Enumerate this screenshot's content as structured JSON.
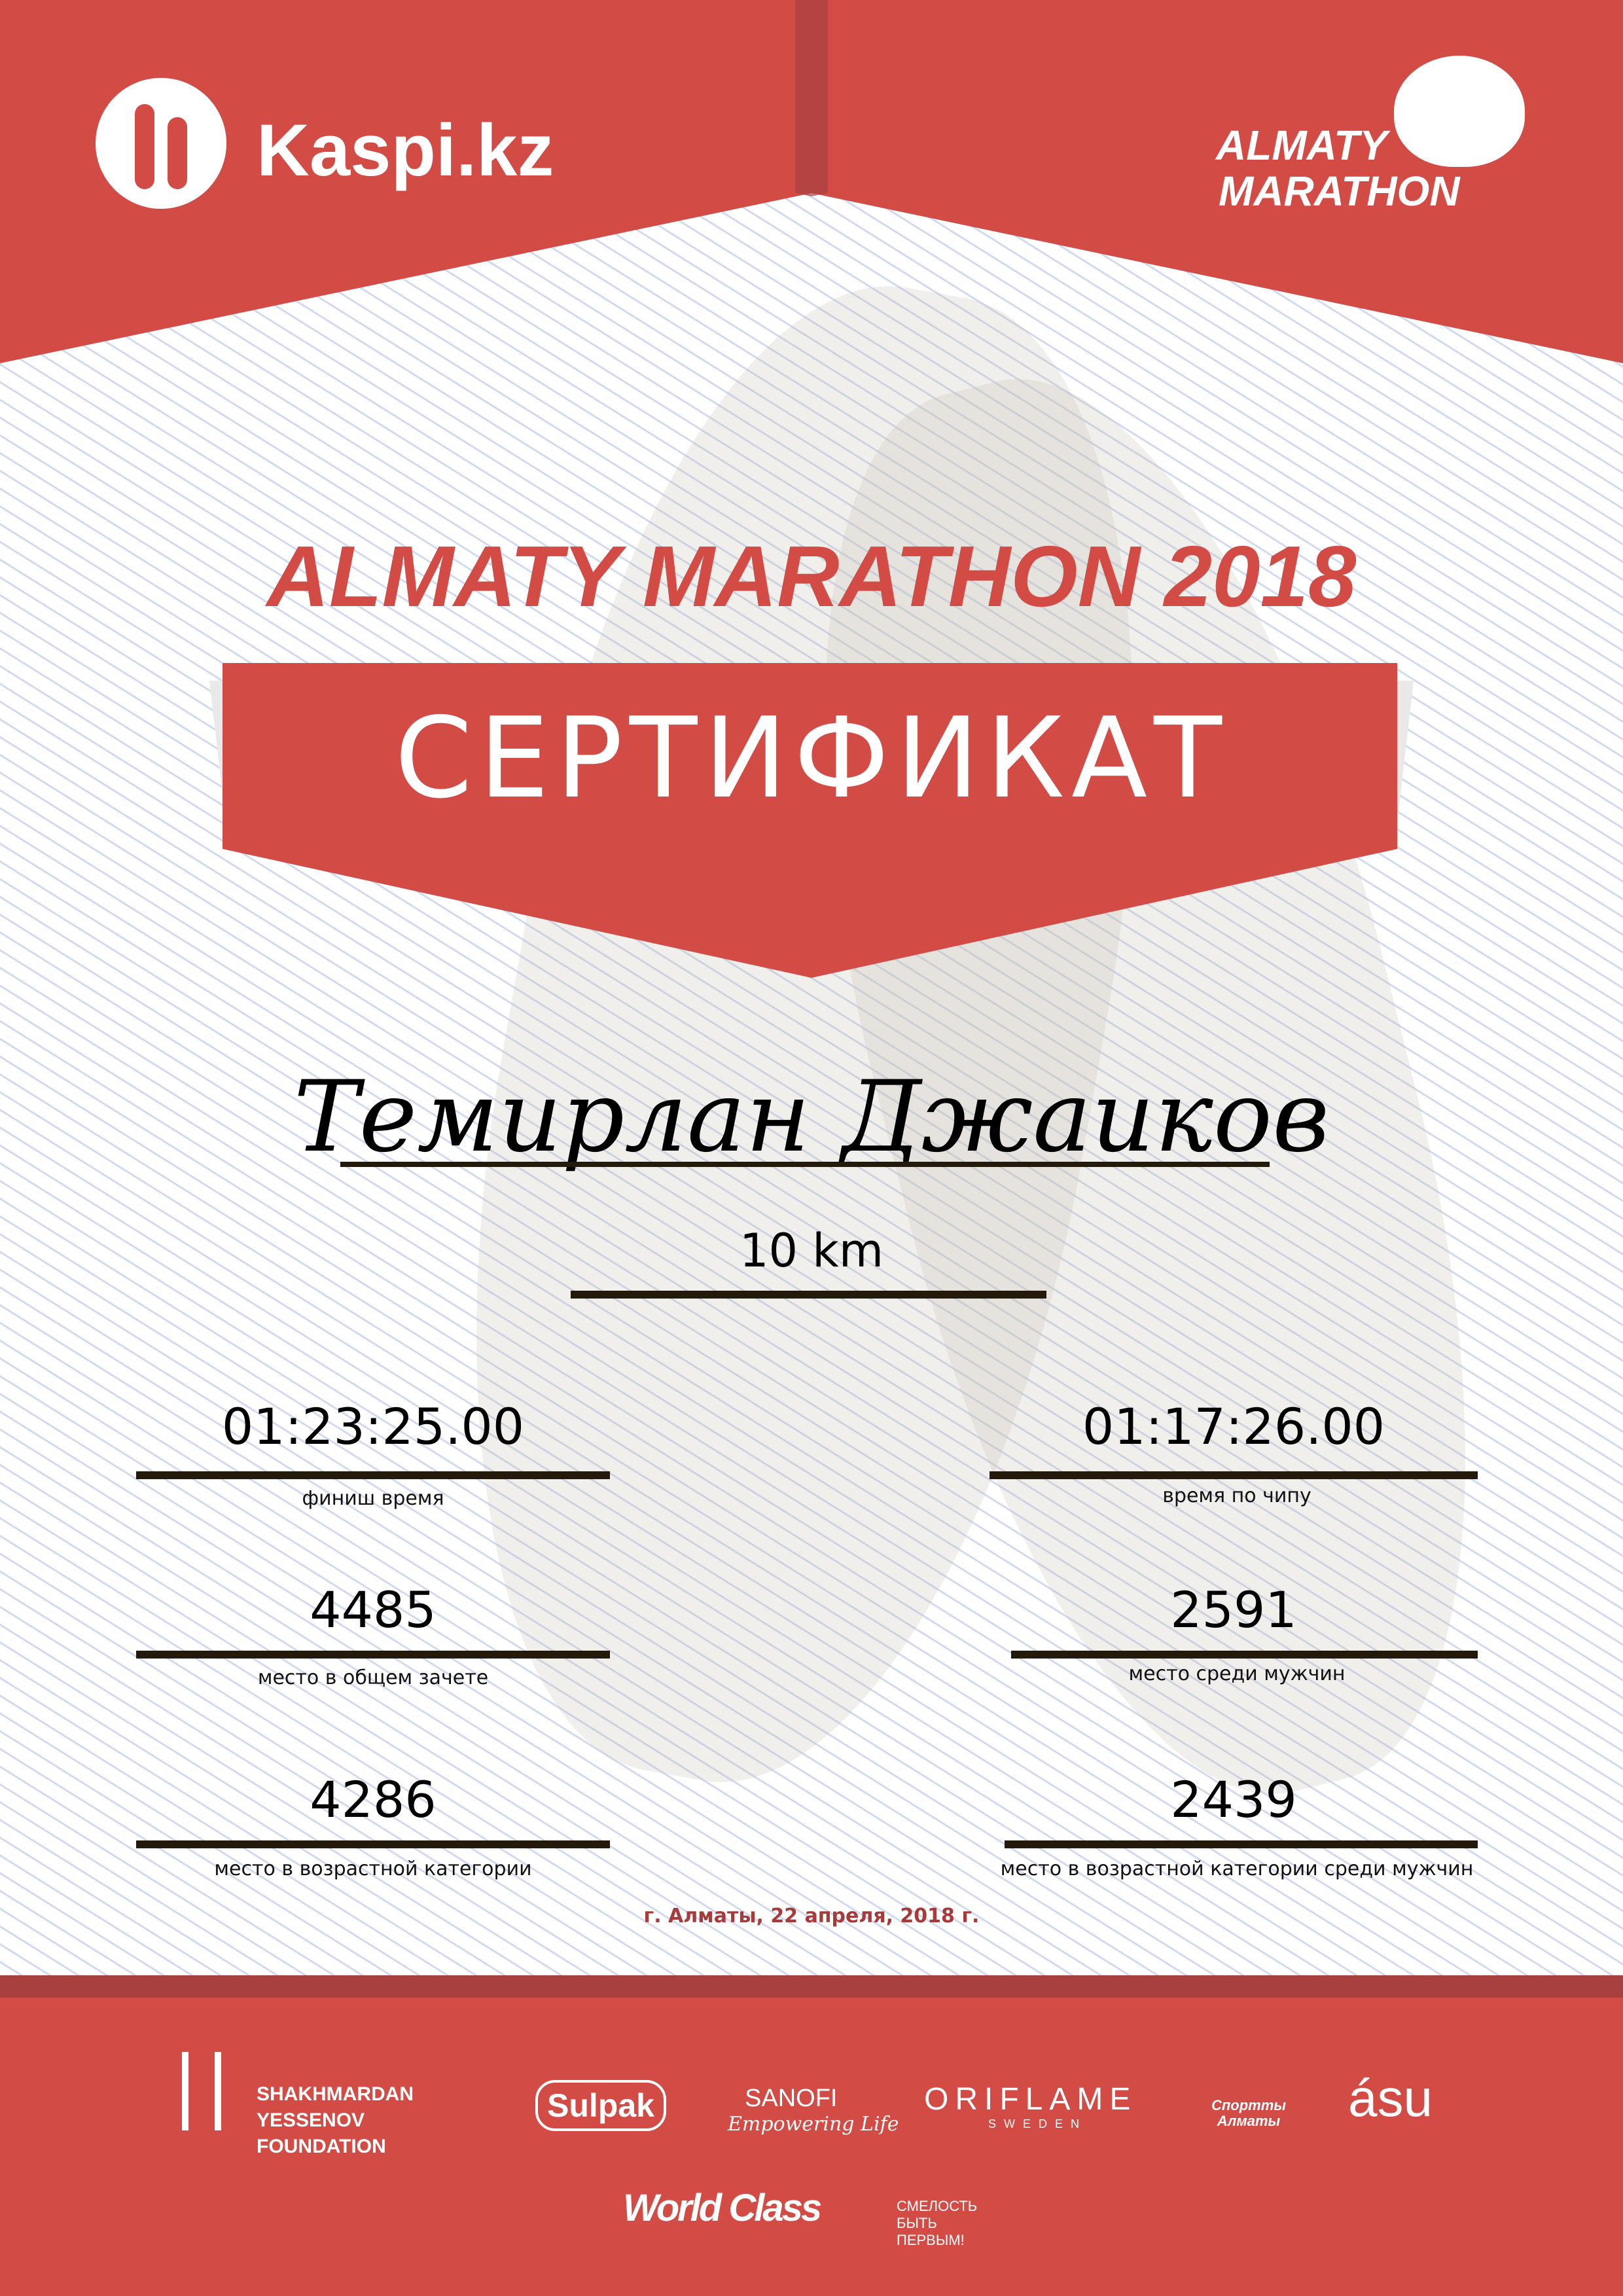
{
  "header": {
    "sponsor_logo_text": "Kaspi.kz",
    "event_logo_line1": "ALMATY",
    "event_logo_line2": "MARATHON"
  },
  "title": "ALMATY MARATHON 2018",
  "banner": "СЕРТИФИКАТ",
  "participant_name": "Темирлан Джаиков",
  "distance": "10 km",
  "stats": [
    {
      "value": "01:23:25.00",
      "label": "финиш время"
    },
    {
      "value": "01:17:26.00",
      "label": "время по чипу"
    },
    {
      "value": "4485",
      "label": "место в общем зачете"
    },
    {
      "value": "2591",
      "label": "место среди мужчин"
    },
    {
      "value": "4286",
      "label": "место в возрастной категории"
    },
    {
      "value": "2439",
      "label": "место в возрастной категории среди мужчин"
    }
  ],
  "date_place": "г. Алматы, 22 апреля, 2018 г.",
  "sponsors": {
    "yessenov": "SHAKHMARDAN YESSENOV FOUNDATION",
    "sulpak": "Sulpak",
    "sanofi": "SANOFI",
    "sanofi_tagline": "Empowering Life",
    "oriflame": "ORIFLAME",
    "oriflame_sub": "SWEDEN",
    "sport_almaty": "Спортты Алматы",
    "asu": "ásu",
    "worldclass": "World Class",
    "fund": "СМЕЛОСТЬ БЫТЬ ПЕРВЫМ!"
  },
  "colors": {
    "brand_red": "#d34b45",
    "dark_red": "#a84040"
  }
}
